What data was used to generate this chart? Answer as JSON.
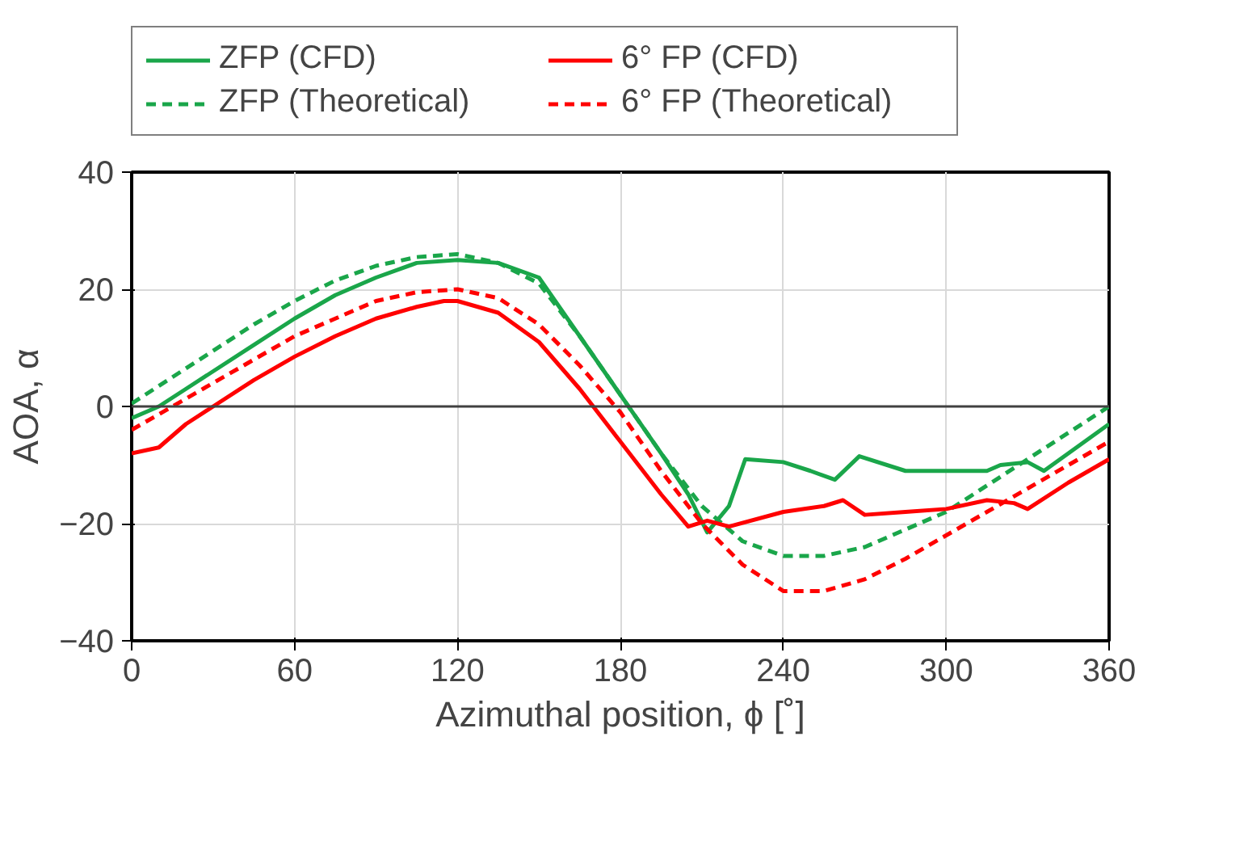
{
  "chart_data": {
    "type": "line",
    "xlabel": "Azimuthal position, ϕ [˚]",
    "ylabel": "AOA, α",
    "xlim": [
      0,
      360
    ],
    "ylim": [
      -40,
      40
    ],
    "xticks": [
      0,
      60,
      120,
      180,
      240,
      300,
      360
    ],
    "yticks": [
      -40,
      -20,
      0,
      20,
      40
    ],
    "grid": true,
    "legend": "top",
    "ref_lines": [
      {
        "axis": "y",
        "value": 0,
        "label": null
      }
    ],
    "series": [
      {
        "name": "ZFP (CFD)",
        "color": "#1aa64a",
        "line_style": "solid",
        "x": [
          0,
          10,
          20,
          30,
          45,
          60,
          75,
          90,
          105,
          120,
          135,
          150,
          165,
          180,
          195,
          205,
          212,
          220,
          226,
          240,
          250,
          259,
          268,
          285,
          300,
          315,
          320,
          330,
          336,
          345,
          360
        ],
        "values": [
          -2,
          0,
          3,
          6,
          10.5,
          15,
          19,
          22,
          24.5,
          25,
          24.5,
          22,
          12,
          2,
          -8,
          -15,
          -21.5,
          -17,
          -9,
          -9.5,
          -11,
          -12.5,
          -8.5,
          -11,
          -11,
          -11,
          -10,
          -9.5,
          -11,
          -8,
          -3
        ]
      },
      {
        "name": "ZFP (Theoretical)",
        "color": "#1aa64a",
        "line_style": "dashed",
        "x": [
          0,
          15,
          30,
          45,
          60,
          75,
          90,
          105,
          120,
          135,
          150,
          165,
          180,
          195,
          210,
          225,
          240,
          255,
          270,
          285,
          300,
          315,
          330,
          345,
          360
        ],
        "values": [
          0.5,
          5,
          9.5,
          14,
          18,
          21.5,
          24,
          25.5,
          26,
          24.5,
          21,
          12,
          2,
          -8,
          -17,
          -23,
          -25.5,
          -25.5,
          -24,
          -21,
          -18,
          -13.5,
          -9,
          -4.5,
          0
        ]
      },
      {
        "name": "6° FP (CFD)",
        "color": "#ff0000",
        "line_style": "solid",
        "x": [
          0,
          10,
          20,
          30,
          45,
          60,
          75,
          90,
          105,
          115,
          120,
          135,
          150,
          165,
          180,
          195,
          205,
          212,
          220,
          240,
          255,
          262,
          270,
          285,
          300,
          315,
          325,
          330,
          345,
          360
        ],
        "values": [
          -8,
          -7,
          -3,
          0,
          4.5,
          8.5,
          12,
          15,
          17,
          18,
          18,
          16,
          11,
          3,
          -6,
          -15,
          -20.5,
          -19.5,
          -20.5,
          -18,
          -17,
          -16,
          -18.5,
          -18,
          -17.5,
          -16,
          -16.5,
          -17.5,
          -13,
          -9
        ]
      },
      {
        "name": "6° FP (Theoretical)",
        "color": "#ff0000",
        "line_style": "dashed",
        "x": [
          0,
          15,
          30,
          45,
          60,
          75,
          90,
          105,
          120,
          135,
          150,
          165,
          180,
          195,
          210,
          225,
          240,
          255,
          270,
          285,
          300,
          315,
          330,
          345,
          360
        ],
        "values": [
          -4,
          0,
          4,
          8,
          12,
          15,
          18,
          19.5,
          20,
          18.5,
          14,
          7,
          -1,
          -11,
          -20,
          -27,
          -31.5,
          -31.5,
          -29.5,
          -26,
          -22,
          -18,
          -14,
          -10,
          -6
        ]
      }
    ]
  }
}
